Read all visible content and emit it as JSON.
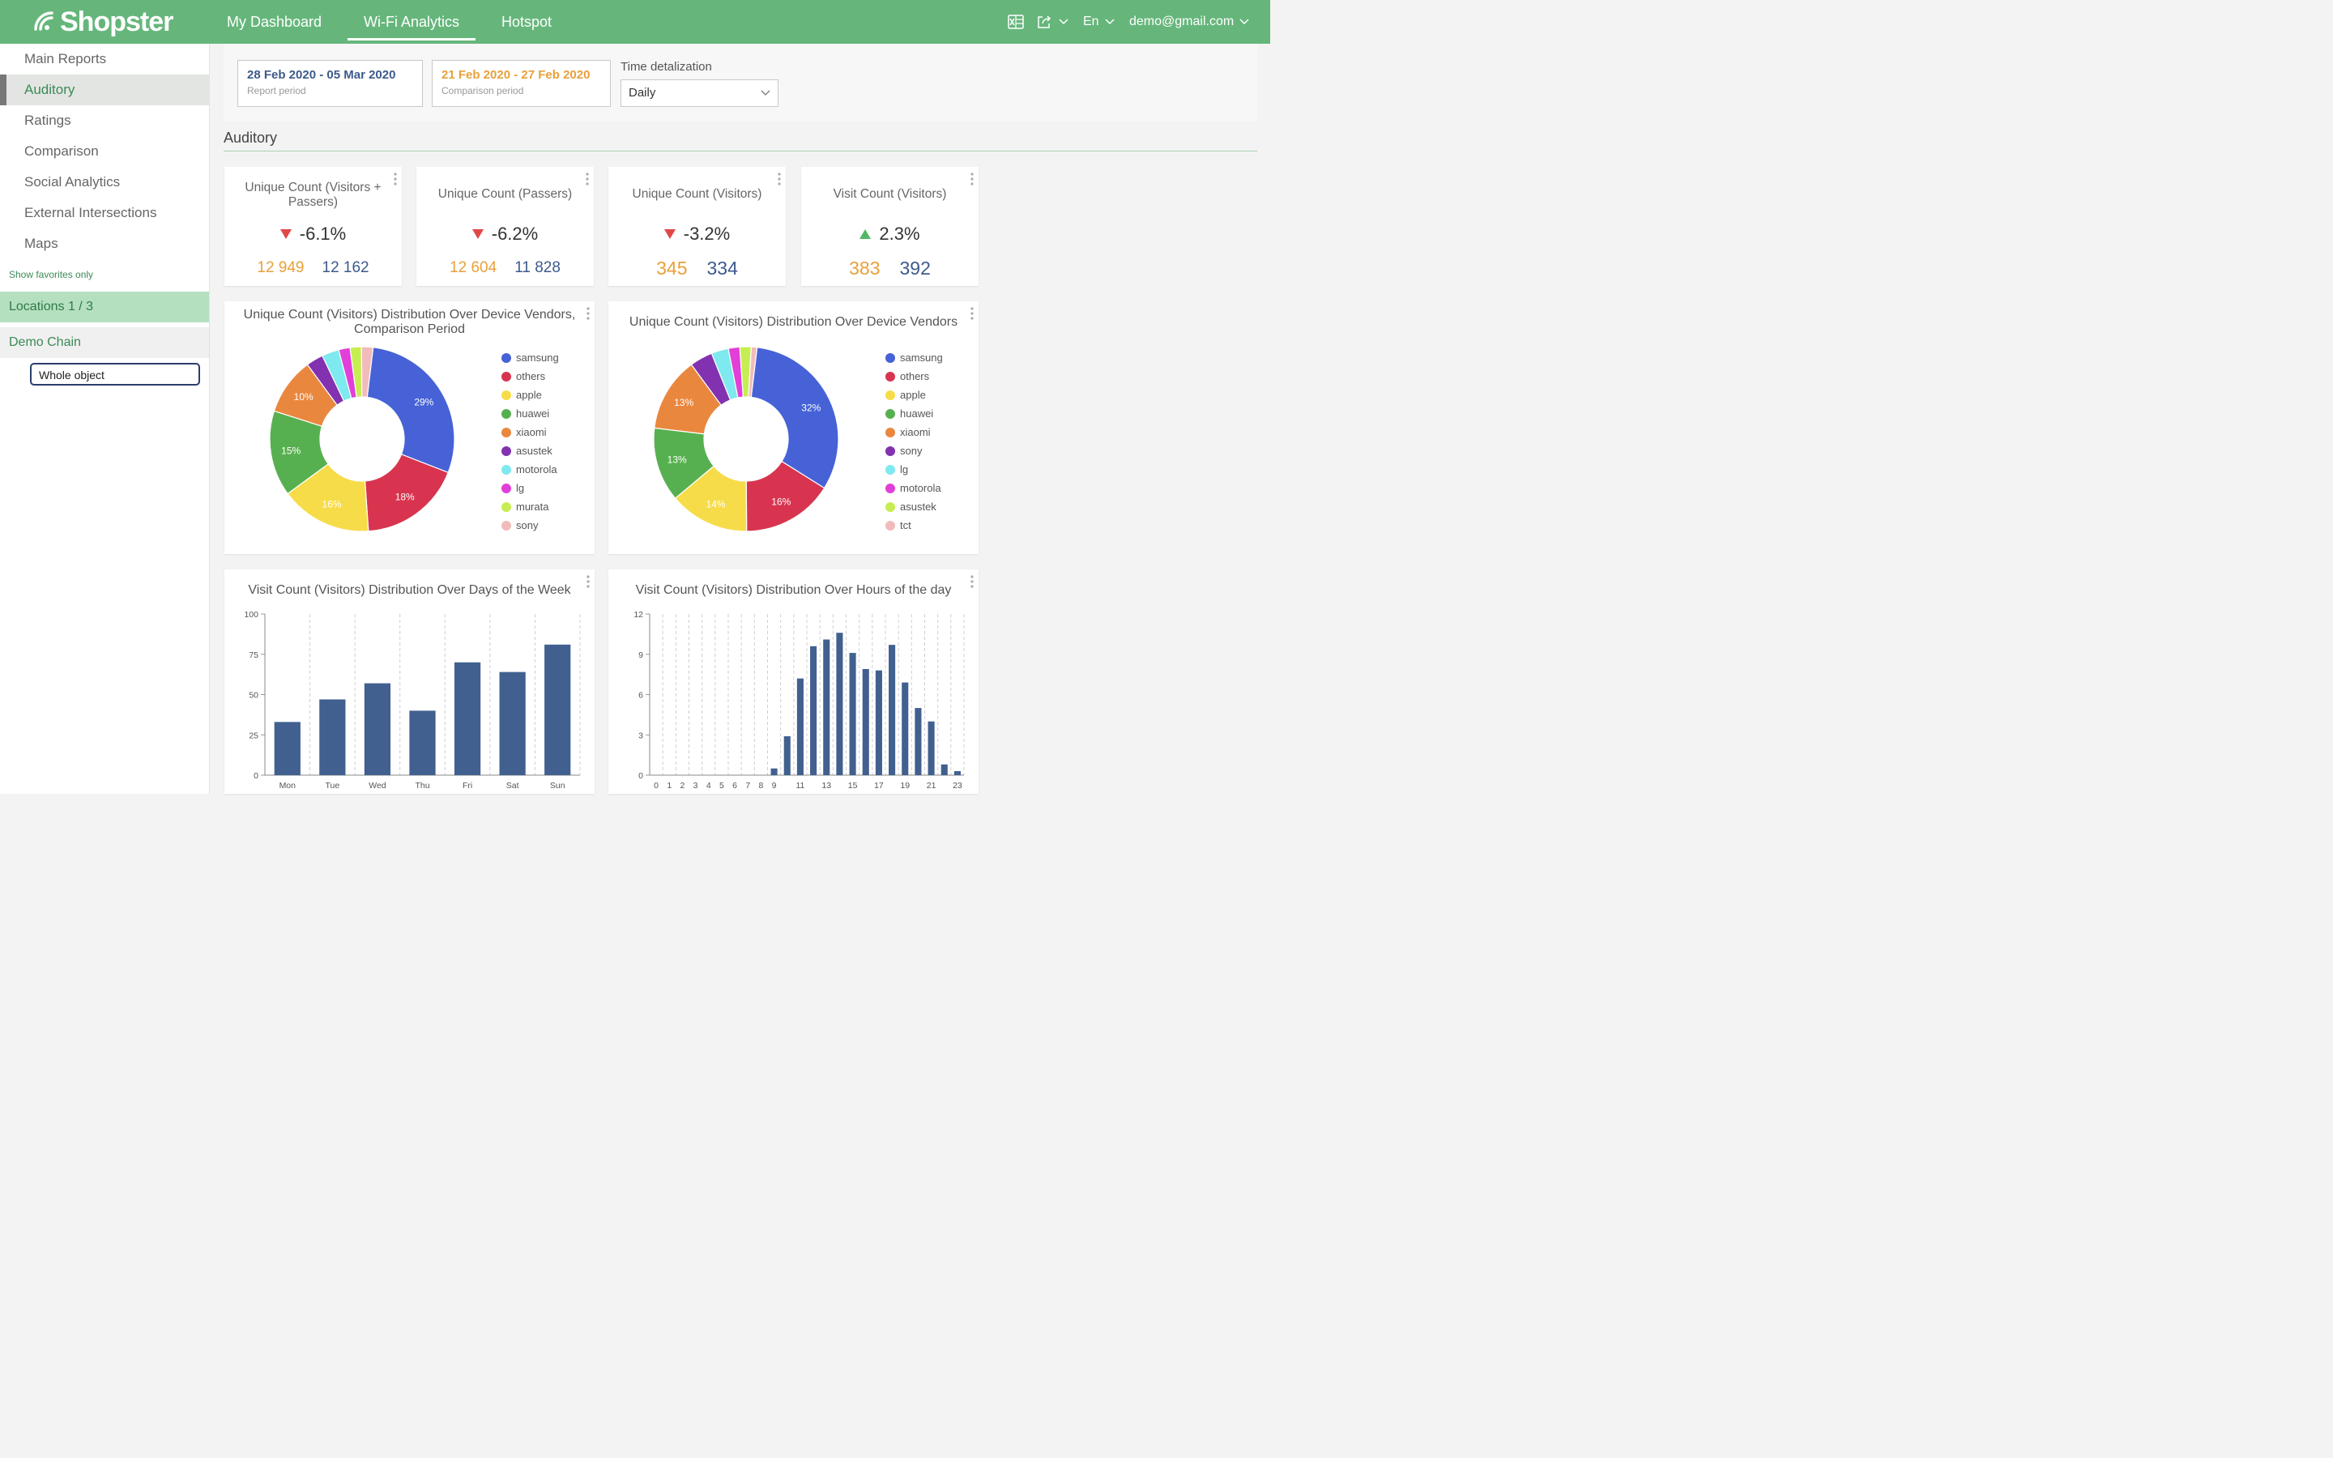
{
  "app": {
    "logo_text": "Shopster",
    "nav": [
      "My Dashboard",
      "Wi-Fi Analytics",
      "Hotspot"
    ],
    "active_nav": 1,
    "language": "En",
    "user": "demo@gmail.com"
  },
  "sidebar": {
    "items": [
      "Main Reports",
      "Auditory",
      "Ratings",
      "Comparison",
      "Social Analytics",
      "External Intersections",
      "Maps"
    ],
    "active_item": 1,
    "show_favorites": "Show favorites only",
    "locations": "Locations 1 / 3",
    "chain": "Demo Chain",
    "selected_object": "Whole object"
  },
  "filters": {
    "report_period": "28 Feb 2020 - 05 Mar 2020",
    "report_label": "Report period",
    "comparison_period": "21 Feb 2020 - 27 Feb 2020",
    "comparison_label": "Comparison period",
    "detalization_label": "Time detalization",
    "detalization_value": "Daily"
  },
  "section_title": "Auditory",
  "colors": {
    "brand": "#66b67b",
    "report": "#3d5a8c",
    "comparison": "#e8a03a",
    "negative": "#e04848",
    "positive": "#53b868",
    "bar": "#41608f"
  },
  "kpis": [
    {
      "title": "Unique Count (Visitors + Passers)",
      "change": "-6.1%",
      "direction": "down",
      "comparison_value": "12 949",
      "report_value": "12 162"
    },
    {
      "title": "Unique Count (Passers)",
      "change": "-6.2%",
      "direction": "down",
      "comparison_value": "12 604",
      "report_value": "11 828"
    },
    {
      "title": "Unique Count (Visitors)",
      "change": "-3.2%",
      "direction": "down",
      "comparison_value": "345",
      "report_value": "334"
    },
    {
      "title": "Visit Count (Visitors)",
      "change": "2.3%",
      "direction": "up",
      "comparison_value": "383",
      "report_value": "392"
    }
  ],
  "chart_data": [
    {
      "type": "pie",
      "title": "Unique Count (Visitors) Distribution Over Device Vendors, Comparison Period",
      "labels": [
        "samsung",
        "others",
        "apple",
        "huawei",
        "xiaomi",
        "asustek",
        "motorola",
        "lg",
        "murata",
        "sony"
      ],
      "values": [
        29,
        18,
        16,
        15,
        10,
        3,
        3,
        2,
        2,
        2
      ],
      "value_labels": [
        "29%",
        "18%",
        "16%",
        "15%",
        "10%",
        "",
        "",
        "",
        "",
        ""
      ],
      "colors": [
        "#4662d6",
        "#d8344f",
        "#f7dc4a",
        "#57b04f",
        "#ea873f",
        "#8232b0",
        "#7ee9ee",
        "#e23fd8",
        "#c6ee52",
        "#f2bbbb"
      ],
      "legend_position": "right"
    },
    {
      "type": "pie",
      "title": "Unique Count (Visitors) Distribution Over Device Vendors",
      "labels": [
        "samsung",
        "others",
        "apple",
        "huawei",
        "xiaomi",
        "sony",
        "lg",
        "motorola",
        "asustek",
        "tct"
      ],
      "values": [
        32,
        16,
        14,
        13,
        13,
        4,
        3,
        2,
        2,
        1
      ],
      "value_labels": [
        "32%",
        "16%",
        "14%",
        "13%",
        "13%",
        "",
        "",
        "",
        "",
        ""
      ],
      "colors": [
        "#4662d6",
        "#d8344f",
        "#f7dc4a",
        "#57b04f",
        "#ea873f",
        "#8232b0",
        "#7ee9ee",
        "#e23fd8",
        "#c6ee52",
        "#f2bbbb"
      ],
      "legend_position": "right"
    },
    {
      "type": "bar",
      "title": "Visit Count (Visitors) Distribution Over Days of the Week",
      "categories": [
        "Mon",
        "Tue",
        "Wed",
        "Thu",
        "Fri",
        "Sat",
        "Sun"
      ],
      "values": [
        33,
        47,
        57,
        40,
        70,
        64,
        81
      ],
      "ylim": [
        0,
        100
      ],
      "yticks": [
        0,
        25,
        50,
        75,
        100
      ],
      "grid": true
    },
    {
      "type": "bar",
      "title": "Visit Count (Visitors) Distribution Over Hours of the day",
      "categories": [
        "0",
        "1",
        "2",
        "3",
        "4",
        "5",
        "6",
        "7",
        "8",
        "9",
        "10",
        "11",
        "12",
        "13",
        "14",
        "15",
        "16",
        "17",
        "18",
        "19",
        "20",
        "21",
        "22",
        "23"
      ],
      "tick_labels": [
        "0",
        "1",
        "2",
        "3",
        "4",
        "5",
        "6",
        "7",
        "8",
        "9",
        "",
        "11",
        "",
        "13",
        "",
        "15",
        "",
        "17",
        "",
        "19",
        "",
        "21",
        "",
        "23"
      ],
      "values": [
        0,
        0,
        0,
        0,
        0,
        0,
        0,
        0,
        0,
        0.5,
        2.9,
        7.2,
        9.6,
        10.1,
        10.6,
        9.1,
        7.9,
        7.8,
        9.7,
        6.9,
        5.0,
        4.0,
        0.8,
        0.3
      ],
      "ylim": [
        0,
        12
      ],
      "yticks": [
        0,
        3,
        6,
        9,
        12
      ],
      "grid": true
    }
  ]
}
